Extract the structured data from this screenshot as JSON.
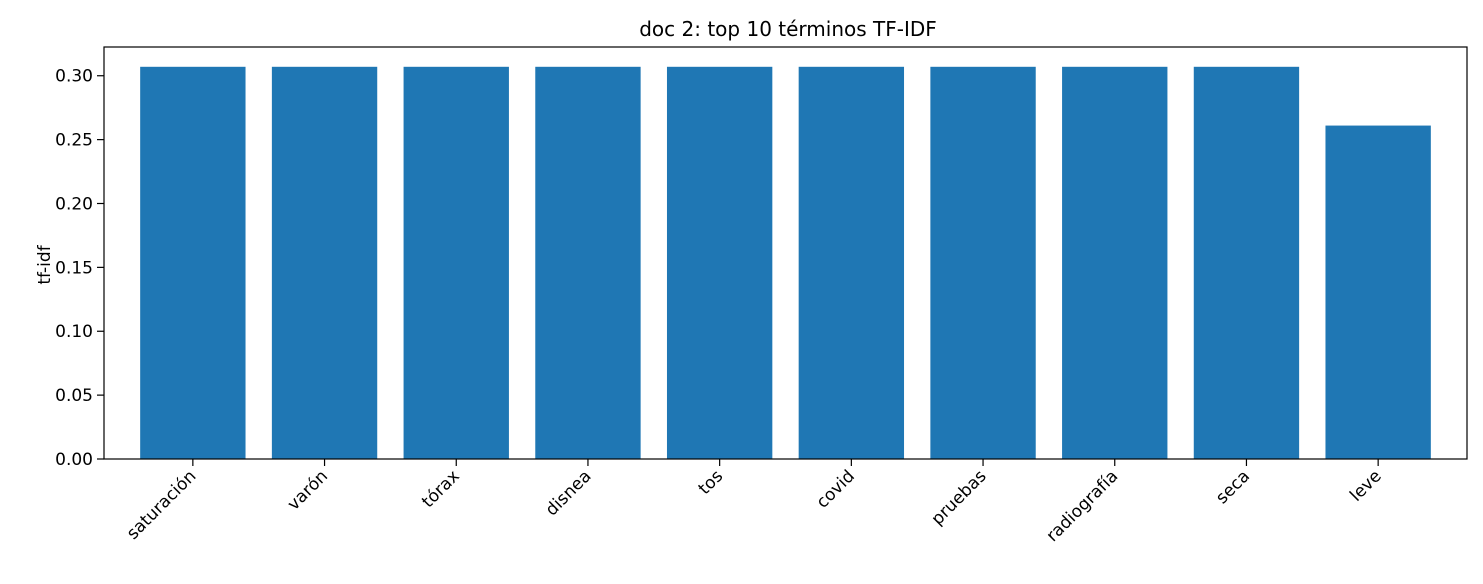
{
  "chart_data": {
    "type": "bar",
    "title": "doc 2: top 10 términos TF-IDF",
    "xlabel": "",
    "ylabel": "tf-idf",
    "categories": [
      "saturación",
      "varón",
      "tórax",
      "disnea",
      "tos",
      "covid",
      "pruebas",
      "radiografía",
      "seca",
      "leve"
    ],
    "values": [
      0.307,
      0.307,
      0.307,
      0.307,
      0.307,
      0.307,
      0.307,
      0.307,
      0.307,
      0.261
    ],
    "ylim": [
      0,
      0.3225
    ],
    "yticks": [
      "0.00",
      "0.05",
      "0.10",
      "0.15",
      "0.20",
      "0.25",
      "0.30"
    ],
    "bar_color": "#1f77b4",
    "grid": false,
    "legend": "none"
  }
}
